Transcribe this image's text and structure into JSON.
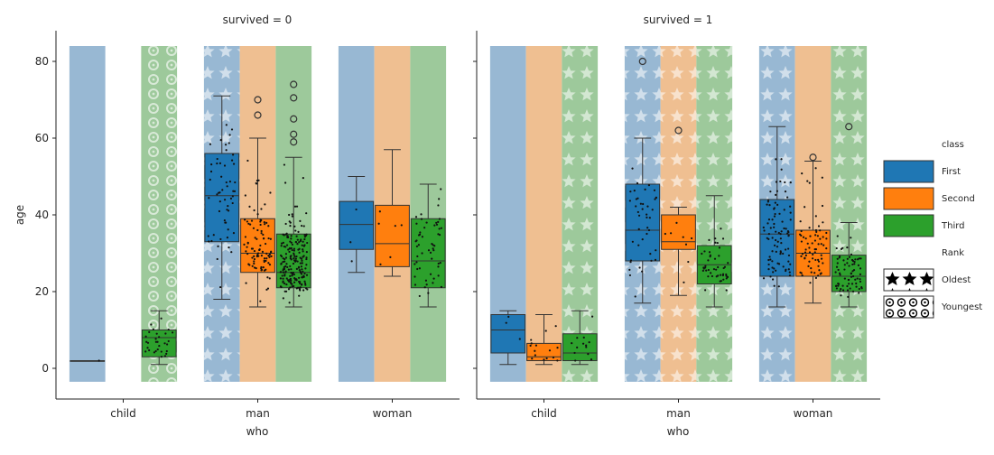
{
  "colors": {
    "First": "#1f77b4",
    "Second": "#ff7f0e",
    "Third": "#2ca02c",
    "First_band": "#98b8d3",
    "Second_band": "#efbf91",
    "Third_band": "#9dc99b",
    "hatch": "#ffffff"
  },
  "legend": {
    "class_title": "class",
    "class_items": [
      "First",
      "Second",
      "Third"
    ],
    "rank_title": "Rank",
    "rank_items": [
      "Oldest",
      "Youngest"
    ]
  },
  "chart_data": {
    "type": "box",
    "facet_titles": [
      "survived = 0",
      "survived = 1"
    ],
    "xlabel": "who",
    "ylabel": "age",
    "categories": [
      "child",
      "man",
      "woman"
    ],
    "hue": [
      "First",
      "Second",
      "Third"
    ],
    "ylim": [
      -8,
      88
    ],
    "yticks": [
      0,
      20,
      40,
      60,
      80
    ],
    "band_range": [
      -3.5,
      84
    ],
    "bands": [
      [
        [
          "none",
          "none",
          "circle"
        ],
        [
          "star",
          "none",
          "none"
        ],
        [
          "none",
          "none",
          "none"
        ]
      ],
      [
        [
          "none",
          "none",
          "star"
        ],
        [
          "star",
          "star",
          "star"
        ],
        [
          "star",
          "none",
          "star"
        ]
      ]
    ],
    "boxes": [
      [
        [
          {
            "min": 2,
            "q1": 2,
            "median": 2,
            "q3": 2,
            "max": 2,
            "outliers": []
          },
          null,
          {
            "min": 1,
            "q1": 3,
            "median": 8,
            "q3": 10,
            "max": 15,
            "outliers": []
          }
        ],
        [
          {
            "min": 18,
            "q1": 33,
            "median": 45,
            "q3": 56,
            "max": 71,
            "outliers": []
          },
          {
            "min": 16,
            "q1": 25,
            "median": 30,
            "q3": 39,
            "max": 60,
            "outliers": [
              66,
              70
            ]
          },
          {
            "min": 16,
            "q1": 21,
            "median": 25,
            "q3": 35,
            "max": 55,
            "outliers": [
              59,
              61,
              65,
              70.5,
              74
            ]
          }
        ],
        [
          {
            "min": 25,
            "q1": 31,
            "median": 37.5,
            "q3": 43.5,
            "max": 50,
            "outliers": []
          },
          {
            "min": 24,
            "q1": 26.5,
            "median": 32.5,
            "q3": 42.5,
            "max": 57,
            "outliers": []
          },
          {
            "min": 16,
            "q1": 21,
            "median": 28,
            "q3": 39,
            "max": 48,
            "outliers": []
          }
        ]
      ],
      [
        [
          {
            "min": 1,
            "q1": 4,
            "median": 10,
            "q3": 14,
            "max": 15,
            "outliers": []
          },
          {
            "min": 1,
            "q1": 2,
            "median": 3,
            "q3": 6.5,
            "max": 14,
            "outliers": []
          },
          {
            "min": 1,
            "q1": 2,
            "median": 4,
            "q3": 9,
            "max": 15,
            "outliers": []
          }
        ],
        [
          {
            "min": 17,
            "q1": 28,
            "median": 36,
            "q3": 48,
            "max": 60,
            "outliers": [
              80
            ]
          },
          {
            "min": 19,
            "q1": 31,
            "median": 33,
            "q3": 40,
            "max": 42,
            "outliers": [
              62
            ]
          },
          {
            "min": 16,
            "q1": 22,
            "median": 27,
            "q3": 32,
            "max": 45,
            "outliers": []
          }
        ],
        [
          {
            "min": 16,
            "q1": 24,
            "median": 35,
            "q3": 44,
            "max": 63,
            "outliers": []
          },
          {
            "min": 17,
            "q1": 24,
            "median": 30,
            "q3": 36,
            "max": 54,
            "outliers": [
              55
            ]
          },
          {
            "min": 16,
            "q1": 20,
            "median": 24,
            "q3": 29.5,
            "max": 38,
            "outliers": [
              63
            ]
          }
        ]
      ]
    ],
    "counts": [
      [
        [
          1,
          0,
          30
        ],
        [
          55,
          95,
          200
        ],
        [
          3,
          6,
          55
        ]
      ],
      [
        [
          3,
          15,
          13
        ],
        [
          42,
          8,
          45
        ],
        [
          91,
          70,
          72
        ]
      ]
    ]
  }
}
